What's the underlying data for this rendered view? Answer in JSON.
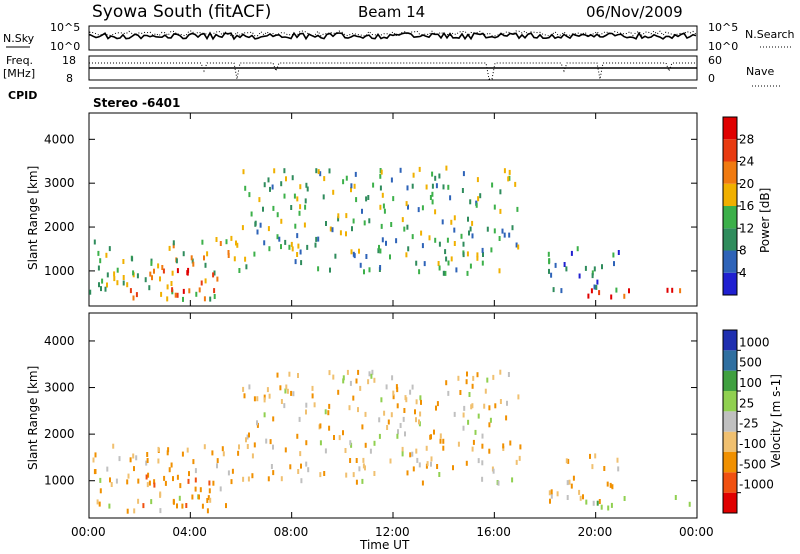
{
  "header": {
    "title": "Syowa South (fitACF)",
    "beam": "Beam 14",
    "date": "06/Nov/2009"
  },
  "colors": {
    "power": [
      "#2020d0",
      "#2e63b8",
      "#2f8c5c",
      "#3cb04a",
      "#f0b000",
      "#f07a10",
      "#e83a10",
      "#e00000"
    ],
    "velocity": [
      "#e00000",
      "#f05010",
      "#f09000",
      "#f0c070",
      "#c0c0c0",
      "#90d050",
      "#40a040",
      "#2f6fa0",
      "#1f2fb0"
    ],
    "line": "#000000"
  },
  "top_panels": {
    "sky": {
      "left_label": "N.Sky",
      "right_label": "N.Search",
      "left_ticks": [
        "10^5",
        "10^0"
      ],
      "right_ticks": [
        "10^5",
        "10^0"
      ]
    },
    "freq": {
      "left_label": "Freq.",
      "left_unit": "[MHz]",
      "left_ticks": [
        "18",
        "8"
      ],
      "right_label": "Nave",
      "right_ticks": [
        "60",
        "0"
      ]
    },
    "cpid": {
      "label": "CPID",
      "value": "Stereo -6401"
    }
  },
  "chart_data": [
    {
      "type": "heatmap",
      "title": "",
      "xlabel": "",
      "ylabel": "Slant Range [km]",
      "colorbar_label": "Power [dB]",
      "colorbar_ticks": [
        "4",
        "8",
        "12",
        "16",
        "20",
        "24",
        "28"
      ],
      "x_ticks": [
        "00:00",
        "04:00",
        "08:00",
        "12:00",
        "16:00",
        "20:00",
        "00:00"
      ],
      "y_ticks": [
        "1000",
        "2000",
        "3000",
        "4000"
      ],
      "xlim": [
        0,
        24
      ],
      "ylim": [
        200,
        4600
      ],
      "scatter_regions": [
        {
          "x": [
            0.0,
            6.0
          ],
          "y": [
            400,
            1800
          ],
          "value": 16
        },
        {
          "x": [
            1.5,
            5.0
          ],
          "y": [
            500,
            1200
          ],
          "value": 24
        },
        {
          "x": [
            18.0,
            21.0
          ],
          "y": [
            600,
            1600
          ],
          "value": 8
        },
        {
          "x": [
            19.5,
            24.0
          ],
          "y": [
            450,
            700
          ],
          "value": 26
        },
        {
          "x": [
            6.0,
            17.0
          ],
          "y": [
            1000,
            3400
          ],
          "value": 12
        }
      ]
    },
    {
      "type": "heatmap",
      "title": "",
      "xlabel": "Time UT",
      "ylabel": "Slant Range [km]",
      "colorbar_label": "Velocity [m s-1]",
      "colorbar_ticks": [
        "1000",
        "500",
        "100",
        "25",
        "-25",
        "-100",
        "-500",
        "-1000"
      ],
      "x_ticks": [
        "00:00",
        "04:00",
        "08:00",
        "12:00",
        "16:00",
        "20:00",
        "00:00"
      ],
      "y_ticks": [
        "1000",
        "2000",
        "3000",
        "4000"
      ],
      "xlim": [
        0,
        24
      ],
      "ylim": [
        200,
        4600
      ],
      "scatter_regions": [
        {
          "x": [
            0.0,
            6.0
          ],
          "y": [
            400,
            1800
          ],
          "value": -200
        },
        {
          "x": [
            1.5,
            5.0
          ],
          "y": [
            500,
            1200
          ],
          "value": -400
        },
        {
          "x": [
            18.0,
            21.0
          ],
          "y": [
            600,
            1600
          ],
          "value": -150
        },
        {
          "x": [
            19.5,
            24.0
          ],
          "y": [
            450,
            700
          ],
          "value": 60
        },
        {
          "x": [
            6.0,
            17.0
          ],
          "y": [
            1000,
            3400
          ],
          "value": -60
        }
      ]
    }
  ]
}
